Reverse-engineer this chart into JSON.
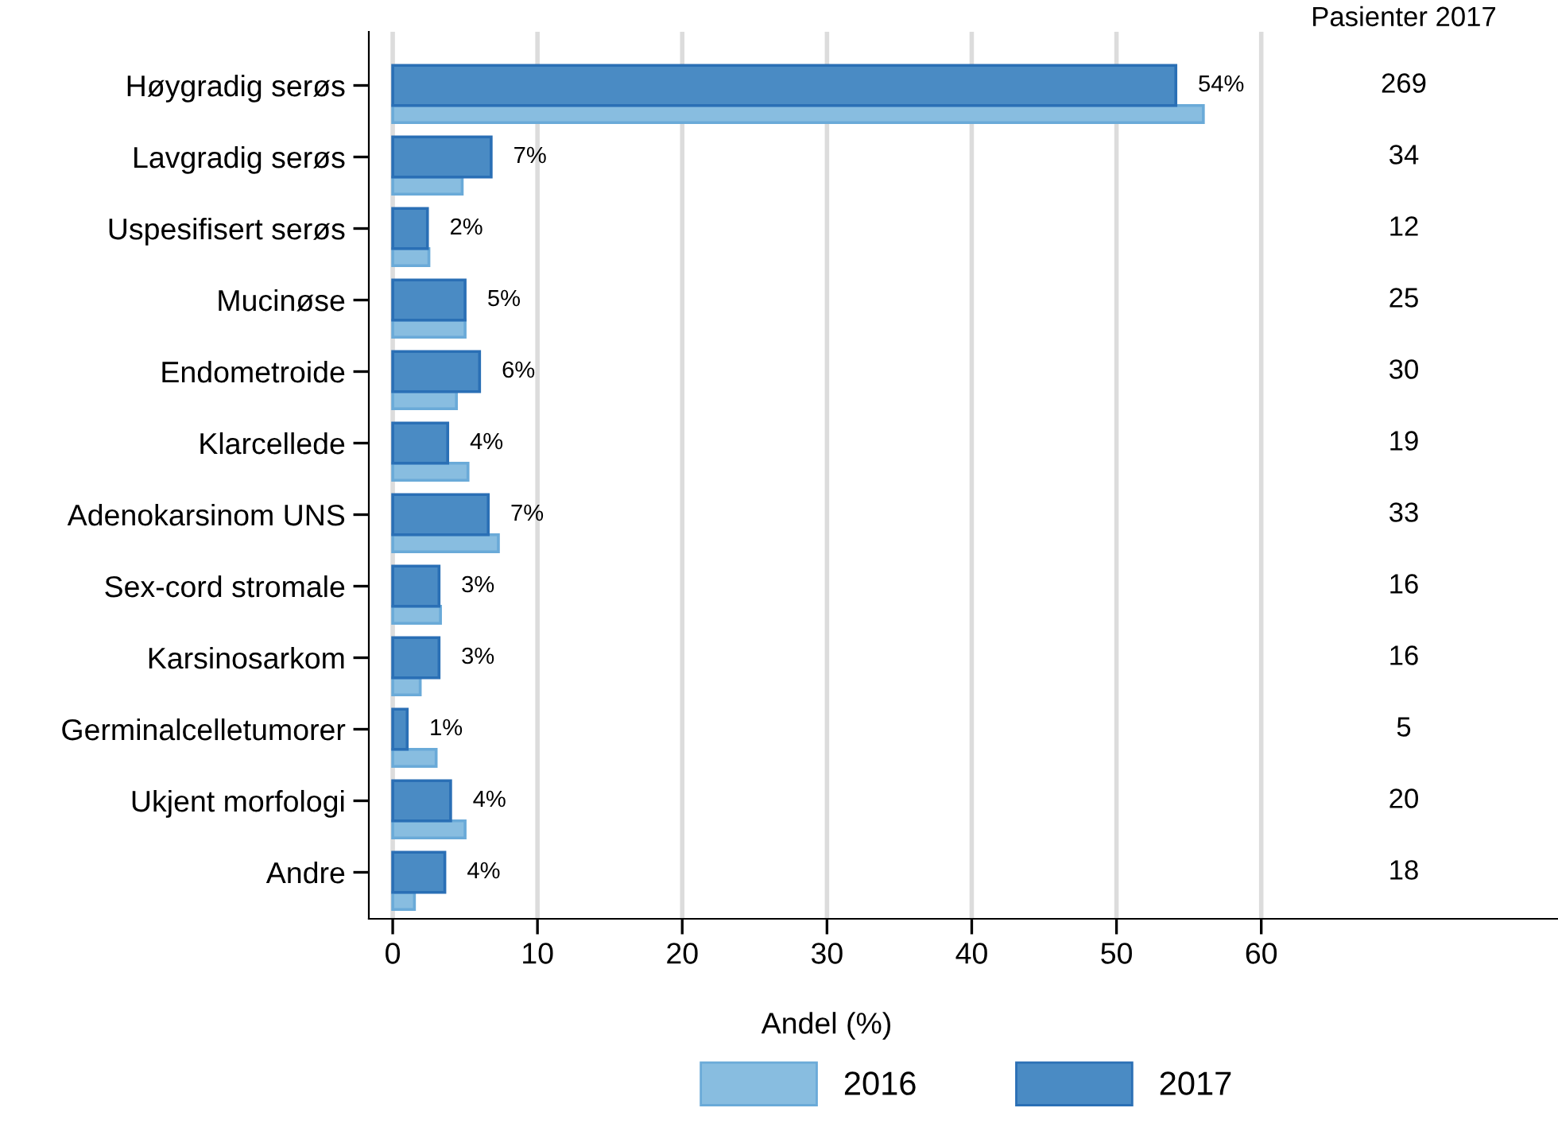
{
  "chart_data": {
    "type": "bar",
    "orientation": "horizontal",
    "xlabel": "Andel (%)",
    "categories": [
      "Høygradig serøs",
      "Lavgradig serøs",
      "Uspesifisert serøs",
      "Mucinøse",
      "Endometroide",
      "Klarcellede",
      "Adenokarsinom UNS",
      "Sex-cord stromale",
      "Karsinosarkom",
      "Germinalcelletumorer",
      "Ukjent morfologi",
      "Andre"
    ],
    "series": [
      {
        "name": "2016",
        "color": "#88bde0",
        "values": [
          56,
          4.8,
          2.5,
          5.0,
          4.4,
          5.2,
          7.3,
          3.3,
          1.9,
          3.0,
          5.0,
          1.5
        ]
      },
      {
        "name": "2017",
        "color": "#4a8bc4",
        "values": [
          54.1,
          6.8,
          2.4,
          5.0,
          6.0,
          3.8,
          6.6,
          3.2,
          3.2,
          1.0,
          4.0,
          3.6
        ],
        "value_labels": [
          "54%",
          "7%",
          "2%",
          "5%",
          "6%",
          "4%",
          "7%",
          "3%",
          "3%",
          "1%",
          "4%",
          "4%"
        ]
      }
    ],
    "xlim": [
      -1.65,
      80.5
    ],
    "xticks": [
      0,
      10,
      20,
      30,
      40,
      50,
      60
    ],
    "grid": "x",
    "legend": "bottom",
    "annotations": [
      "Pasienter 2017",
      "269",
      "34",
      "12",
      "25",
      "30",
      "19",
      "33",
      "16",
      "16",
      "5",
      "20",
      "18"
    ]
  }
}
